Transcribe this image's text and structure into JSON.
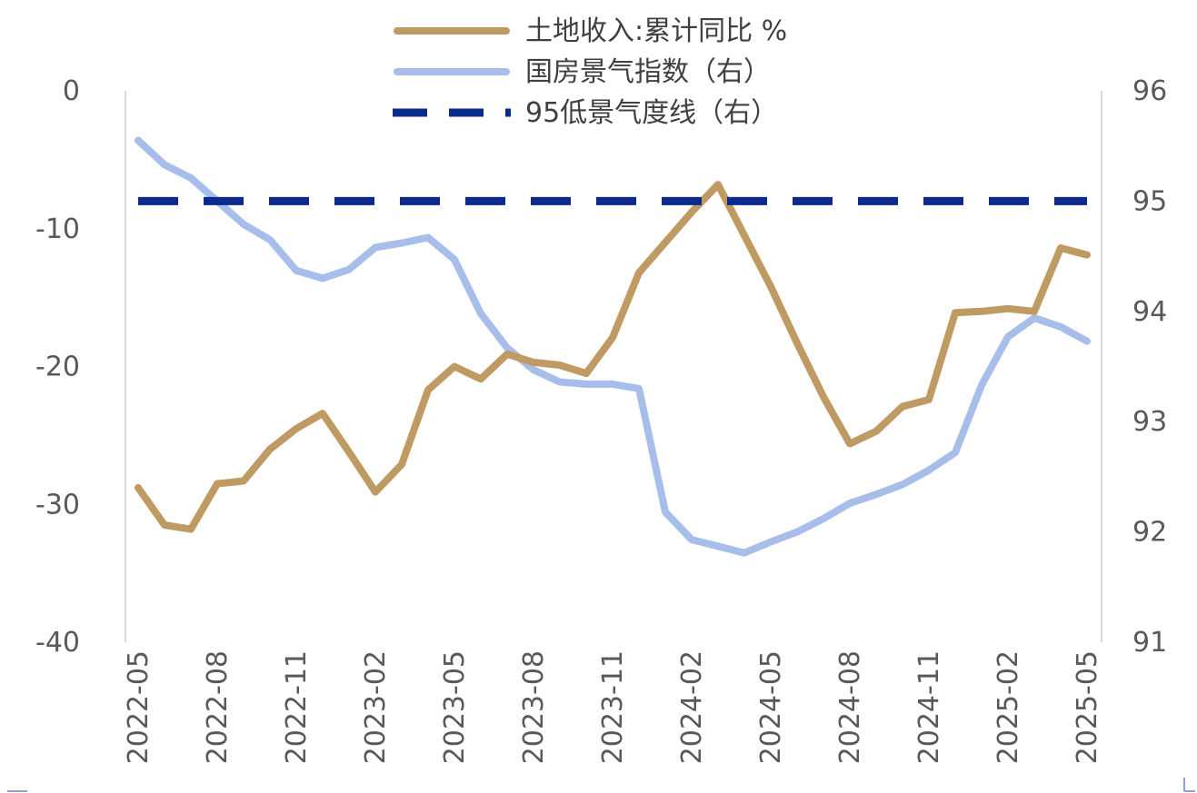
{
  "chart_data": {
    "type": "line",
    "x": [
      "2022-05",
      "2022-06",
      "2022-07",
      "2022-08",
      "2022-09",
      "2022-10",
      "2022-11",
      "2022-12",
      "2023-01",
      "2023-02",
      "2023-03",
      "2023-04",
      "2023-05",
      "2023-06",
      "2023-07",
      "2023-08",
      "2023-09",
      "2023-10",
      "2023-11",
      "2023-12",
      "2024-01",
      "2024-02",
      "2024-03",
      "2024-04",
      "2024-05",
      "2024-06",
      "2024-07",
      "2024-08",
      "2024-09",
      "2024-10",
      "2024-11",
      "2024-12",
      "2025-01",
      "2025-02",
      "2025-03",
      "2025-04",
      "2025-05"
    ],
    "x_tick_labels": [
      "2022-05",
      "2022-08",
      "2022-11",
      "2023-02",
      "2023-05",
      "2023-08",
      "2023-11",
      "2024-02",
      "2024-05",
      "2024-08",
      "2024-11",
      "2025-02",
      "2025-05"
    ],
    "y_left": {
      "ticks": [
        "0",
        "-10",
        "-20",
        "-30",
        "-40"
      ],
      "ylim": [
        -40,
        0
      ]
    },
    "y_right": {
      "ticks": [
        "96",
        "95",
        "94",
        "93",
        "92",
        "91"
      ],
      "ylim": [
        91,
        96
      ]
    },
    "legend_position": "top-center",
    "grid": false,
    "series": [
      {
        "name": "土地收入:累计同比 %",
        "axis": "left",
        "color": "#BF9A62",
        "style": "solid",
        "values": [
          -28.8,
          -31.5,
          -31.8,
          -28.5,
          -28.3,
          -26.0,
          -24.5,
          -23.4,
          -26.2,
          -29.1,
          -27.1,
          -21.7,
          -20.0,
          -20.9,
          -19.1,
          -19.7,
          -19.9,
          -20.5,
          -17.9,
          -13.2,
          -11.0,
          -8.8,
          -6.8,
          -10.5,
          -14.2,
          -18.3,
          -22.2,
          -25.6,
          -24.7,
          -22.9,
          -22.4,
          -16.1,
          -16.0,
          -15.8,
          -16.0,
          -11.4,
          -11.9
        ]
      },
      {
        "name": "国房景气指数（右）",
        "axis": "right",
        "color": "#A7BDEA",
        "style": "solid",
        "values": [
          95.55,
          95.33,
          95.21,
          95.0,
          94.79,
          94.65,
          94.37,
          94.3,
          94.38,
          94.58,
          94.62,
          94.67,
          94.47,
          93.98,
          93.67,
          93.47,
          93.36,
          93.34,
          93.34,
          93.3,
          92.18,
          91.93,
          91.87,
          91.81,
          91.91,
          92.0,
          92.12,
          92.26,
          92.34,
          92.43,
          92.56,
          92.72,
          93.33,
          93.77,
          93.94,
          93.86,
          93.73
        ]
      },
      {
        "name": "95低景气度线（右）",
        "axis": "right",
        "color": "#0B2B8C",
        "style": "dashed",
        "values": [
          95,
          95,
          95,
          95,
          95,
          95,
          95,
          95,
          95,
          95,
          95,
          95,
          95,
          95,
          95,
          95,
          95,
          95,
          95,
          95,
          95,
          95,
          95,
          95,
          95,
          95,
          95,
          95,
          95,
          95,
          95,
          95,
          95,
          95,
          95,
          95,
          95
        ]
      }
    ]
  }
}
